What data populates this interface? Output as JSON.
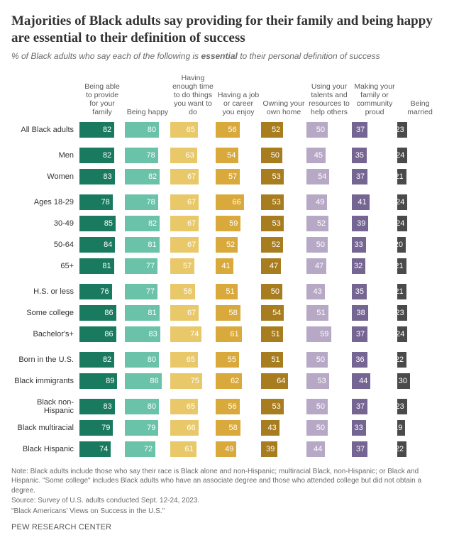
{
  "title": "Majorities of Black adults say providing for their family and being happy are essential to their definition of success",
  "subtitle_pre": "% of Black adults who say each of the following is ",
  "subtitle_bold": "essential",
  "subtitle_post": " to their personal definition of success",
  "columns": [
    {
      "label": "Being able to provide for your family",
      "color": "#1a7a5f"
    },
    {
      "label": "Being happy",
      "color": "#6ac2a8"
    },
    {
      "label": "Having enough time to do things you want to do",
      "color": "#e9c86a"
    },
    {
      "label": "Having a job or career you enjoy",
      "color": "#d9a93b"
    },
    {
      "label": "Owning your own home",
      "color": "#a87d1f"
    },
    {
      "label": "Using your talents and resources to help others",
      "color": "#b7a9c6"
    },
    {
      "label": "Making your family or community proud",
      "color": "#756592"
    },
    {
      "label": "Being married",
      "color": "#4a4a4a"
    }
  ],
  "max_value": 100,
  "groups": [
    {
      "rows": [
        {
          "label": "All Black adults",
          "values": [
            82,
            80,
            65,
            56,
            52,
            50,
            37,
            23
          ]
        }
      ]
    },
    {
      "rows": [
        {
          "label": "Men",
          "values": [
            82,
            78,
            63,
            54,
            50,
            45,
            35,
            24
          ]
        },
        {
          "label": "Women",
          "values": [
            83,
            82,
            67,
            57,
            53,
            54,
            37,
            21
          ]
        }
      ]
    },
    {
      "rows": [
        {
          "label": "Ages 18-29",
          "values": [
            78,
            78,
            67,
            66,
            53,
            49,
            41,
            24
          ]
        },
        {
          "label": "30-49",
          "values": [
            85,
            82,
            67,
            59,
            53,
            52,
            39,
            24
          ]
        },
        {
          "label": "50-64",
          "values": [
            84,
            81,
            67,
            52,
            52,
            50,
            33,
            20
          ]
        },
        {
          "label": "65+",
          "values": [
            81,
            77,
            57,
            41,
            47,
            47,
            32,
            21
          ]
        }
      ]
    },
    {
      "rows": [
        {
          "label": "H.S. or less",
          "values": [
            76,
            77,
            58,
            51,
            50,
            43,
            35,
            21
          ]
        },
        {
          "label": "Some college",
          "values": [
            86,
            81,
            67,
            58,
            54,
            51,
            38,
            23
          ]
        },
        {
          "label": "Bachelor's+",
          "values": [
            86,
            83,
            74,
            61,
            51,
            59,
            37,
            24
          ]
        }
      ]
    },
    {
      "rows": [
        {
          "label": "Born in the U.S.",
          "values": [
            82,
            80,
            65,
            55,
            51,
            50,
            36,
            22
          ]
        },
        {
          "label": "Black immigrants",
          "values": [
            89,
            86,
            75,
            62,
            64,
            53,
            44,
            30
          ]
        }
      ]
    },
    {
      "rows": [
        {
          "label": "Black non-Hispanic",
          "values": [
            83,
            80,
            65,
            56,
            53,
            50,
            37,
            23
          ]
        },
        {
          "label": "Black multiracial",
          "values": [
            79,
            79,
            66,
            58,
            43,
            50,
            33,
            19
          ]
        },
        {
          "label": "Black Hispanic",
          "values": [
            74,
            72,
            61,
            49,
            39,
            44,
            37,
            22
          ]
        }
      ]
    }
  ],
  "note": "Note: Black adults include those who say their race is Black alone and non-Hispanic; multiracial Black, non-Hispanic; or Black and Hispanic. \"Some college\" includes Black adults who have an associate degree and those who attended college but did not obtain a degree.",
  "source": "Source: Survey of U.S. adults conducted Sept. 12-24, 2023.",
  "report": "\"Black Americans' Views on Success in the U.S.\"",
  "credit": "PEW RESEARCH CENTER",
  "text_color_light": "#ffffff",
  "text_color_dark_threshold_cols": []
}
